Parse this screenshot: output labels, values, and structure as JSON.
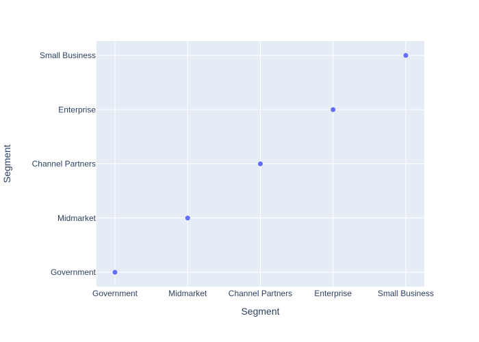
{
  "chart_data": {
    "type": "scatter",
    "title": "",
    "xlabel": "Segment",
    "ylabel": "Segment",
    "x_categories": [
      "Government",
      "Midmarket",
      "Channel Partners",
      "Enterprise",
      "Small Business"
    ],
    "y_categories": [
      "Government",
      "Midmarket",
      "Channel Partners",
      "Enterprise",
      "Small Business"
    ],
    "points": [
      {
        "x": "Government",
        "y": "Government"
      },
      {
        "x": "Midmarket",
        "y": "Midmarket"
      },
      {
        "x": "Channel Partners",
        "y": "Channel Partners"
      },
      {
        "x": "Enterprise",
        "y": "Enterprise"
      },
      {
        "x": "Small Business",
        "y": "Small Business"
      }
    ],
    "grid": true,
    "legend": false,
    "colors": {
      "plot_background": "#e5ecf6",
      "grid": "#ffffff",
      "marker": "#636efa",
      "text": "#2a3f5f"
    }
  }
}
